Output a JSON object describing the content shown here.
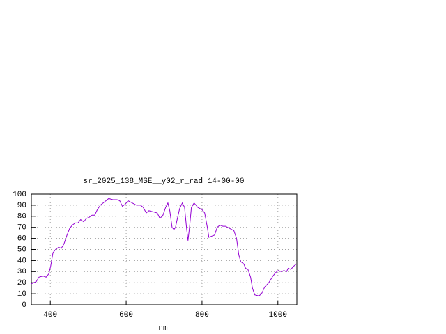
{
  "chart_data": {
    "type": "line",
    "title": "sr_2025_138_MSE__y02_r_rad 14-00-00",
    "x_label": "nm",
    "x": [
      350,
      363,
      370,
      381,
      389,
      396,
      401,
      407,
      414,
      422,
      429,
      436,
      444,
      451,
      458,
      466,
      473,
      480,
      488,
      495,
      502,
      510,
      517,
      524,
      532,
      543,
      554,
      565,
      576,
      583,
      590,
      598,
      605,
      616,
      627,
      638,
      645,
      653,
      660,
      671,
      682,
      689,
      697,
      704,
      710,
      715,
      721,
      726,
      730,
      735,
      741,
      748,
      754,
      759,
      763,
      767,
      772,
      779,
      789,
      800,
      807,
      814,
      818,
      825,
      833,
      840,
      847,
      855,
      862,
      873,
      884,
      891,
      897,
      902,
      910,
      915,
      921,
      928,
      933,
      939,
      950,
      957,
      965,
      976,
      987,
      994,
      1001,
      1009,
      1016,
      1023,
      1027,
      1034,
      1042,
      1049
    ],
    "series": [
      {
        "name": "sr_2025_138_MSE__y02_r_rad",
        "color": "#9400d3",
        "values": [
          19,
          21,
          25,
          26,
          25,
          28,
          35,
          47,
          50,
          52,
          51,
          55,
          63,
          69,
          72,
          74,
          74,
          77,
          75,
          78,
          79,
          81,
          81,
          86,
          90,
          93,
          96,
          95,
          95,
          94,
          89,
          91,
          94,
          92,
          90,
          90,
          88,
          83,
          85,
          84,
          83,
          78,
          81,
          88,
          92,
          85,
          70,
          68,
          70,
          78,
          87,
          92,
          88,
          70,
          58,
          70,
          88,
          92,
          88,
          86,
          83,
          70,
          61,
          62,
          63,
          70,
          72,
          71,
          71,
          69,
          67,
          60,
          45,
          39,
          37,
          33,
          32,
          25,
          15,
          9,
          8,
          10,
          16,
          20,
          26,
          29,
          31,
          30,
          31,
          30,
          33,
          32,
          35,
          37
        ]
      }
    ],
    "xlim": [
      350,
      1050
    ],
    "ylim": [
      0,
      100
    ],
    "xticks": [
      400,
      600,
      800,
      1000
    ],
    "yticks": [
      0,
      10,
      20,
      30,
      40,
      50,
      60,
      70,
      80,
      90,
      100
    ],
    "grid": true
  }
}
